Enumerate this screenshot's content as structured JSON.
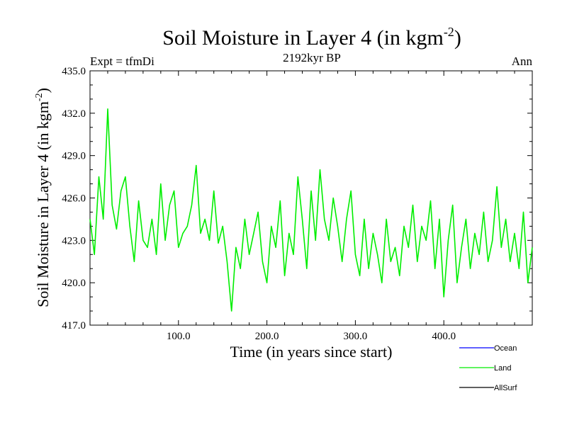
{
  "chart_data": {
    "type": "line",
    "title_main": "Soil Moisture in Layer 4 (in kgm",
    "title_sup": "-2",
    "title_close": ")",
    "subtitle_left": "Expt = tfmDi",
    "subtitle_center": "2192kyr BP",
    "subtitle_right": "Ann",
    "xlabel": "Time (in years since start)",
    "ylabel_main": "Soil Moisture in Layer 4 (in kgm",
    "ylabel_sup": "-2",
    "ylabel_close": ")",
    "xlim": [
      0,
      500
    ],
    "ylim": [
      417.0,
      435.0
    ],
    "x_ticks": [
      100,
      200,
      300,
      400
    ],
    "x_tick_labels": [
      "100.0",
      "200.0",
      "300.0",
      "400.0"
    ],
    "y_ticks": [
      417,
      420,
      423,
      426,
      429,
      432,
      435
    ],
    "y_tick_labels": [
      "417.0",
      "420.0",
      "423.0",
      "426.0",
      "429.0",
      "432.0",
      "435.0"
    ],
    "legend": [
      {
        "name": "Ocean",
        "color": "#0000ff"
      },
      {
        "name": "Land",
        "color": "#00ee00"
      },
      {
        "name": "AllSurf",
        "color": "#000000"
      }
    ],
    "series": [
      {
        "name": "Land",
        "color": "#00ee00",
        "x": [
          0,
          5,
          10,
          15,
          20,
          25,
          30,
          35,
          40,
          45,
          50,
          55,
          60,
          65,
          70,
          75,
          80,
          85,
          90,
          95,
          100,
          105,
          110,
          115,
          120,
          125,
          130,
          135,
          140,
          145,
          150,
          155,
          160,
          165,
          170,
          175,
          180,
          185,
          190,
          195,
          200,
          205,
          210,
          215,
          220,
          225,
          230,
          235,
          240,
          245,
          250,
          255,
          260,
          265,
          270,
          275,
          280,
          285,
          290,
          295,
          300,
          305,
          310,
          315,
          320,
          325,
          330,
          335,
          340,
          345,
          350,
          355,
          360,
          365,
          370,
          375,
          380,
          385,
          390,
          395,
          400,
          405,
          410,
          415,
          420,
          425,
          430,
          435,
          440,
          445,
          450,
          455,
          460,
          465,
          470,
          475,
          480,
          485,
          490,
          495,
          500
        ],
        "values": [
          424.5,
          422.0,
          427.5,
          424.5,
          432.3,
          425.5,
          423.8,
          426.5,
          427.5,
          424.0,
          421.5,
          425.8,
          423.0,
          422.5,
          424.5,
          422.0,
          427.0,
          423.0,
          425.5,
          426.5,
          422.5,
          423.5,
          424.0,
          425.5,
          428.3,
          423.5,
          424.5,
          423.0,
          426.5,
          422.8,
          424.0,
          421.5,
          418.0,
          422.5,
          421.0,
          424.5,
          422.0,
          423.5,
          425.0,
          421.5,
          420.0,
          424.0,
          422.5,
          425.8,
          420.5,
          423.5,
          422.0,
          427.5,
          424.5,
          421.0,
          426.5,
          423.0,
          428.0,
          424.5,
          423.0,
          426.0,
          424.0,
          421.5,
          424.5,
          426.5,
          422.0,
          420.5,
          424.5,
          421.0,
          423.5,
          422.0,
          420.0,
          424.5,
          421.5,
          422.5,
          420.5,
          424.0,
          422.5,
          425.5,
          421.5,
          424.0,
          423.0,
          425.8,
          421.0,
          424.5,
          419.0,
          423.0,
          425.5,
          420.0,
          422.5,
          424.5,
          421.0,
          423.5,
          422.0,
          425.0,
          421.5,
          423.0,
          426.8,
          422.5,
          424.5,
          421.5,
          423.5,
          421.0,
          425.0,
          420.0,
          422.5
        ]
      }
    ]
  }
}
